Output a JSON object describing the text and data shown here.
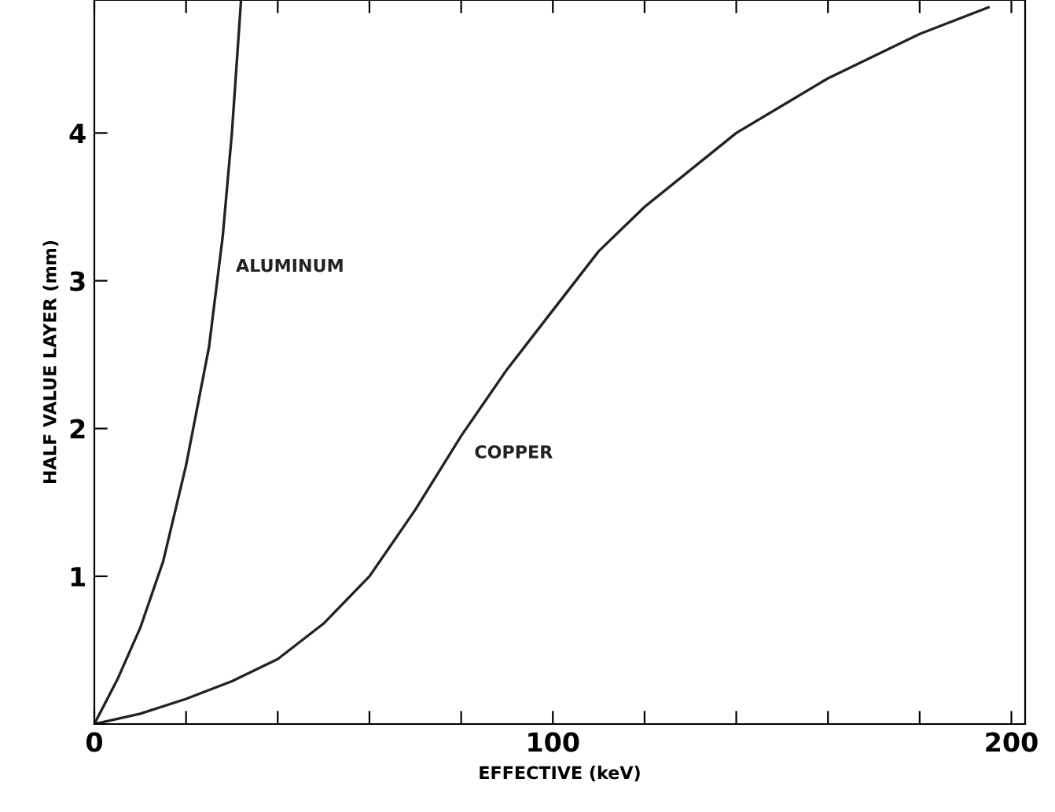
{
  "chart_data": {
    "type": "line",
    "xlabel": "EFFECTIVE (keV)",
    "ylabel": "HALF VALUE LAYER (mm)",
    "series": [
      {
        "name": "ALUMINUM",
        "color": "#222222",
        "x": [
          0,
          5,
          10,
          15,
          20,
          25,
          28,
          30,
          32
        ],
        "values": [
          0,
          0.3,
          0.65,
          1.1,
          1.75,
          2.55,
          3.3,
          4.0,
          4.9
        ]
      },
      {
        "name": "COPPER",
        "color": "#222222",
        "x": [
          0,
          10,
          20,
          30,
          40,
          50,
          60,
          70,
          80,
          90,
          100,
          110,
          120,
          140,
          160,
          180,
          195
        ],
        "values": [
          0,
          0.07,
          0.17,
          0.29,
          0.44,
          0.68,
          1.0,
          1.45,
          1.95,
          2.4,
          2.8,
          3.2,
          3.5,
          4.0,
          4.37,
          4.67,
          4.85
        ]
      }
    ],
    "xlim": [
      0,
      203
    ],
    "xticks": [
      0,
      {
        "value": 20,
        "label": null
      },
      {
        "value": 40,
        "label": null
      },
      {
        "value": 60,
        "label": null
      },
      {
        "value": 80,
        "label": null
      },
      100,
      {
        "value": 120,
        "label": null
      },
      {
        "value": 140,
        "label": null
      },
      {
        "value": 160,
        "label": null
      },
      {
        "value": 180,
        "label": null
      },
      200
    ],
    "ylim": [
      0,
      4.9
    ],
    "yticks": [
      1,
      2,
      3,
      4
    ],
    "grid": false,
    "marker": "none",
    "line_style": "solid"
  }
}
